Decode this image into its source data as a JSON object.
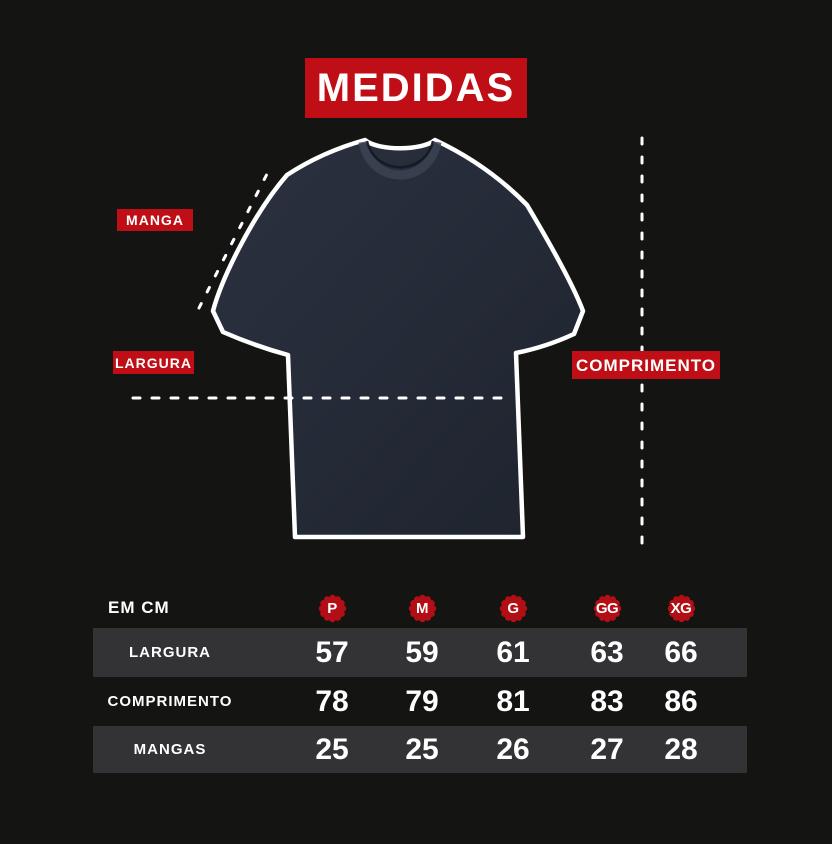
{
  "title": "MEDIDAS",
  "diagram": {
    "manga_label": "MANGA",
    "largura_label": "LARGURA",
    "comprimento_label": "COMPRIMENTO"
  },
  "colors": {
    "background": "#141413",
    "accent_red": "#bf0e15",
    "badge_red": "#b30e15",
    "stripe_gray": "#333336",
    "shirt_navy": "#262b36",
    "outline_white": "#ffffff"
  },
  "size_table": {
    "unit_label": "EM CM",
    "sizes": [
      "P",
      "M",
      "G",
      "GG",
      "XG"
    ],
    "rows": [
      {
        "label": "LARGURA",
        "values": [
          57,
          59,
          61,
          63,
          66
        ]
      },
      {
        "label": "COMPRIMENTO",
        "values": [
          78,
          79,
          81,
          83,
          86
        ]
      },
      {
        "label": "MANGAS",
        "values": [
          25,
          25,
          26,
          27,
          28
        ]
      }
    ]
  }
}
